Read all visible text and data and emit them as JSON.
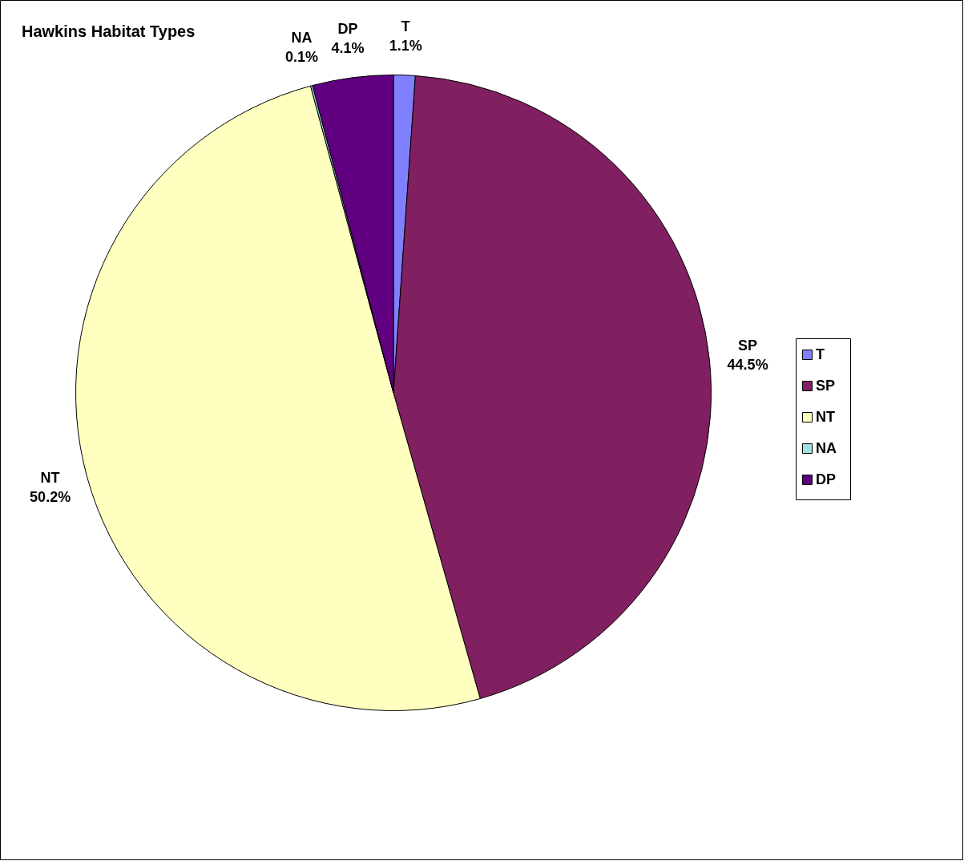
{
  "chart_data": {
    "type": "pie",
    "title": "Hawkins Habitat Types",
    "categories": [
      "T",
      "SP",
      "NT",
      "NA",
      "DP"
    ],
    "values": [
      1.1,
      44.5,
      50.2,
      0.1,
      4.1
    ],
    "value_labels": [
      "1.1%",
      "44.5%",
      "50.2%",
      "0.1%",
      "4.1%"
    ],
    "colors": [
      "#8080ff",
      "#802060",
      "#ffffc0",
      "#a0e0e0",
      "#600080"
    ],
    "legend": "right"
  }
}
